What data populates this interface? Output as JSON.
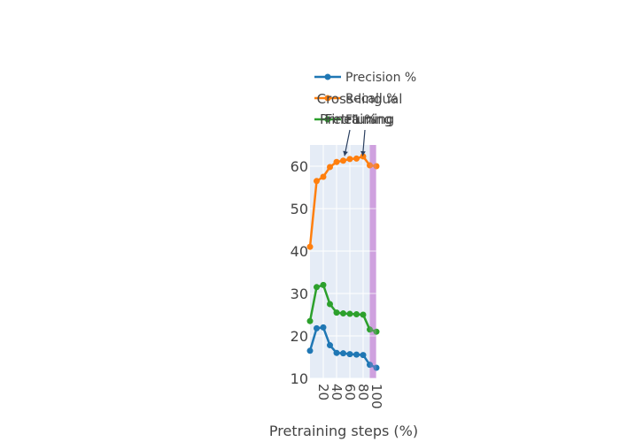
{
  "chart_data": {
    "type": "line",
    "xlabel": "Pretraining steps (%)",
    "ylabel": "",
    "x": [
      0,
      10,
      20,
      30,
      40,
      50,
      60,
      70,
      80,
      90,
      100
    ],
    "x_ticks": [
      20,
      40,
      60,
      80,
      100
    ],
    "y_ticks": [
      10,
      20,
      30,
      40,
      50,
      60
    ],
    "xlim": [
      0,
      100
    ],
    "ylim": [
      10,
      65
    ],
    "grid": true,
    "legend_position": "top",
    "series": [
      {
        "name": "Precision %",
        "color": "#1f77b4",
        "values": [
          16.5,
          21.8,
          22.0,
          17.8,
          16.0,
          15.9,
          15.7,
          15.6,
          15.5,
          13.2,
          12.5
        ]
      },
      {
        "name": "Recall %",
        "color": "#ff7f0e",
        "values": [
          41.0,
          56.5,
          57.5,
          59.8,
          61.0,
          61.3,
          61.7,
          61.8,
          62.3,
          60.2,
          60.0
        ]
      },
      {
        "name": "F1 %",
        "color": "#2ca02c",
        "values": [
          23.5,
          31.5,
          32.0,
          27.5,
          25.5,
          25.3,
          25.2,
          25.1,
          25.0,
          21.5,
          21.0
        ]
      }
    ],
    "shaded_region": {
      "x_start": 90,
      "x_end": 100,
      "color": "#cc99dd"
    },
    "annotations": [
      {
        "text": "Cross-lingual",
        "x": 60,
        "y": 62
      },
      {
        "text": "Pretraining",
        "x": 90,
        "y": 62
      },
      {
        "text": "Finetuning",
        "x": 90,
        "y": 62
      }
    ]
  }
}
